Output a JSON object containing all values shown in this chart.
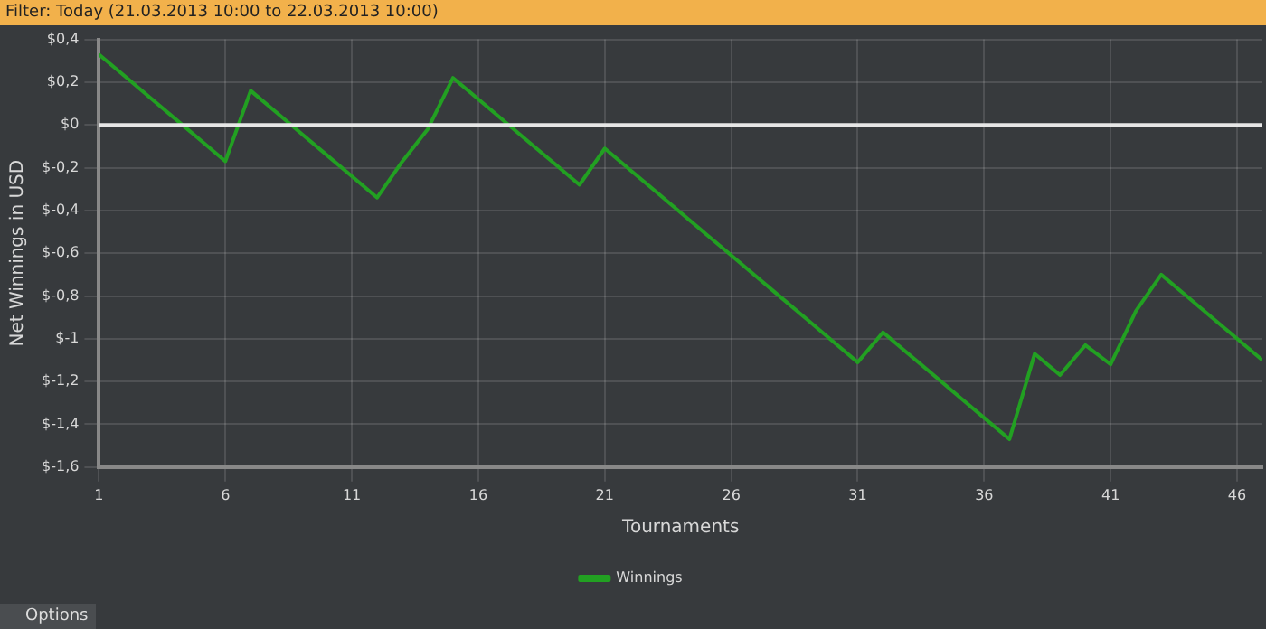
{
  "chart_data": {
    "type": "line",
    "title": "Filter: Today (21.03.2013 10:00 to 22.03.2013 10:00)",
    "xlabel": "Tournaments",
    "ylabel": "Net Winnings in USD",
    "x": [
      1,
      2,
      3,
      4,
      5,
      6,
      7,
      8,
      9,
      10,
      11,
      12,
      13,
      14,
      15,
      16,
      17,
      18,
      19,
      20,
      21,
      22,
      23,
      24,
      25,
      26,
      27,
      28,
      29,
      30,
      31,
      32,
      33,
      34,
      35,
      36,
      37,
      38,
      39,
      40,
      41,
      42,
      43,
      44,
      45,
      46,
      47
    ],
    "series": [
      {
        "name": "Winnings",
        "color": "#22a022",
        "values": [
          0.33,
          0.23,
          0.13,
          0.03,
          -0.07,
          -0.17,
          0.16,
          0.06,
          -0.04,
          -0.14,
          -0.24,
          -0.34,
          -0.17,
          -0.02,
          0.22,
          0.12,
          0.02,
          -0.08,
          -0.18,
          -0.28,
          -0.11,
          -0.21,
          -0.31,
          -0.41,
          -0.51,
          -0.61,
          -0.71,
          -0.81,
          -0.91,
          -1.01,
          -1.11,
          -0.97,
          -1.07,
          -1.17,
          -1.27,
          -1.37,
          -1.47,
          -1.07,
          -1.17,
          -1.03,
          -1.12,
          -0.87,
          -0.7,
          -0.8,
          -0.9,
          -1.0,
          -1.1
        ]
      }
    ],
    "xlim": [
      1,
      47
    ],
    "xticks": [
      1,
      6,
      11,
      16,
      21,
      26,
      31,
      36,
      41,
      46
    ],
    "ylim": [
      -1.6,
      0.4
    ],
    "yticks": [
      {
        "value": -1.6,
        "label": "$-1,6"
      },
      {
        "value": -1.4,
        "label": "$-1,4"
      },
      {
        "value": -1.2,
        "label": "$-1,2"
      },
      {
        "value": -1,
        "label": "$-1"
      },
      {
        "value": -0.8,
        "label": "$-0,8"
      },
      {
        "value": -0.6,
        "label": "$-0,6"
      },
      {
        "value": -0.4,
        "label": "$-0,4"
      },
      {
        "value": -0.2,
        "label": "$-0,2"
      },
      {
        "value": 0,
        "label": "$0"
      },
      {
        "value": 0.2,
        "label": "$0,2"
      },
      {
        "value": 0.4,
        "label": "$0,4"
      }
    ],
    "ref_lines": [
      {
        "axis": "y",
        "value": 0,
        "color": "#e6e6e6"
      }
    ],
    "annotations": [
      "Options"
    ],
    "grid": true,
    "legend": "bottom",
    "marker": "none",
    "line_style": "solid"
  }
}
